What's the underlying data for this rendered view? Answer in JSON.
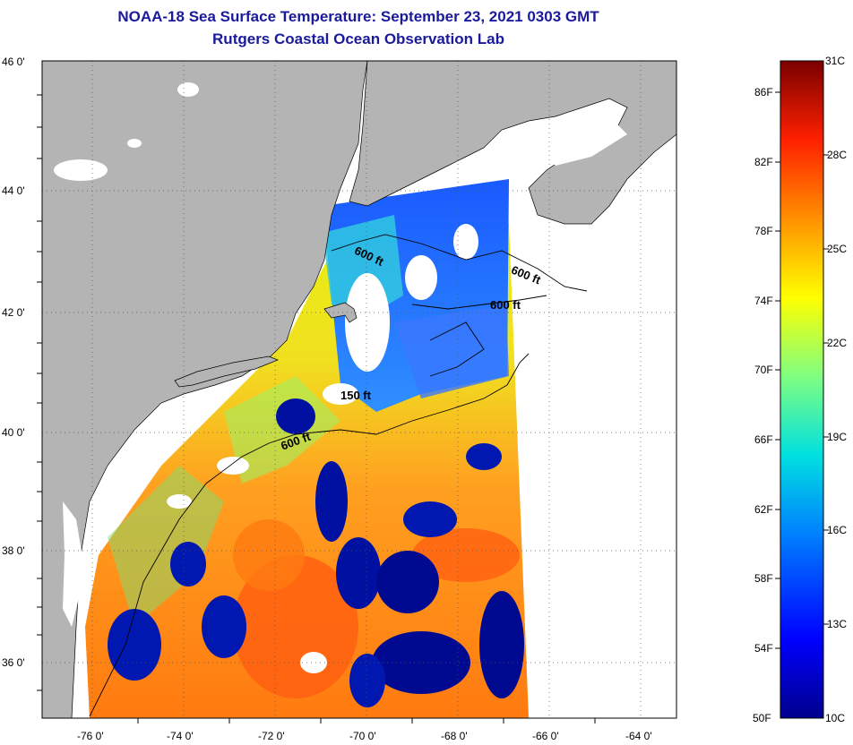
{
  "title": {
    "line1": "NOAA-18 Sea Surface Temperature:  September 23, 2021 0303 GMT",
    "line2": "Rutgers Coastal Ocean Observation Lab"
  },
  "map": {
    "lon_range": [
      -77,
      -63
    ],
    "lat_range": [
      35,
      46
    ],
    "x_ticks": [
      "-76 0'",
      "-74 0'",
      "-72 0'",
      "-70 0'",
      "-68 0'",
      "-66 0'",
      "-64 0'"
    ],
    "y_ticks": [
      "46 0'",
      "44 0'",
      "42 0'",
      "40 0'",
      "38 0'",
      "36 0'"
    ],
    "colors": {
      "land": "#b4b4b4",
      "cloud": "#ffffff",
      "grid": "#555555"
    },
    "contours": [
      {
        "label": "600 ft"
      },
      {
        "label": "600 ft"
      },
      {
        "label": "600 ft"
      },
      {
        "label": "150 ft"
      },
      {
        "label": "600 ft"
      }
    ]
  },
  "colorbar": {
    "range_c": [
      10,
      31
    ],
    "range_f": [
      50,
      88
    ],
    "f_labels": [
      "86F",
      "82F",
      "78F",
      "74F",
      "70F",
      "66F",
      "62F",
      "58F",
      "54F",
      "50F"
    ],
    "c_labels": [
      "31C",
      "28C",
      "25C",
      "22C",
      "19C",
      "16C",
      "13C",
      "10C"
    ]
  }
}
